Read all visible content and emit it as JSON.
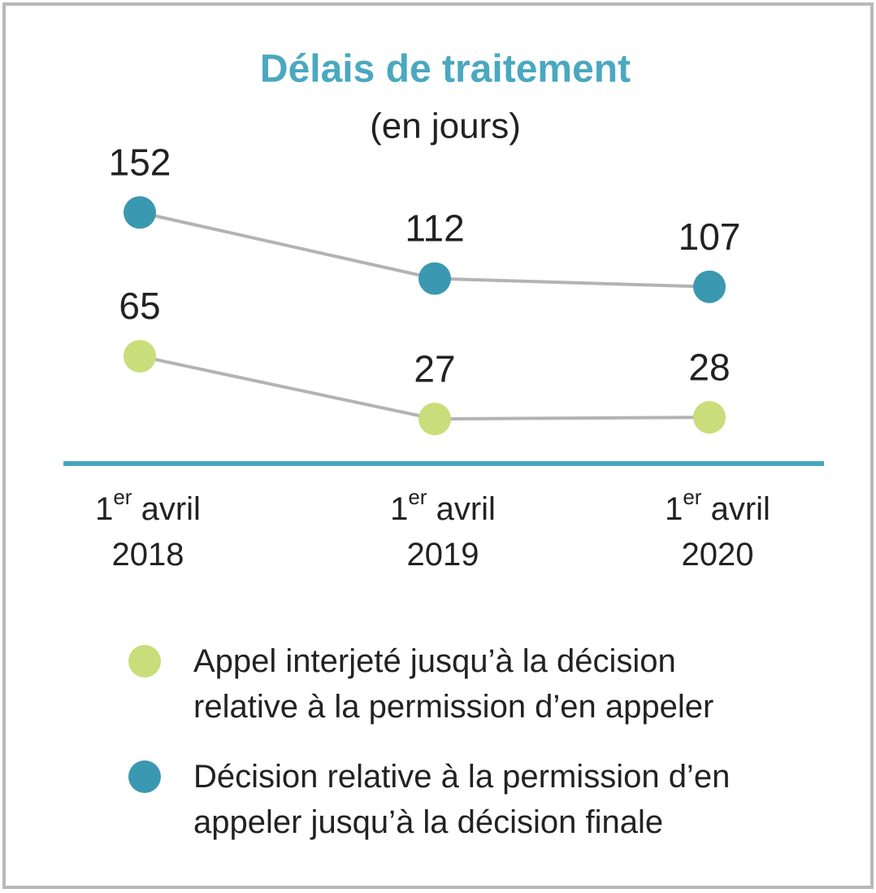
{
  "chart_data": {
    "type": "line",
    "title": "Délais de traitement",
    "subtitle": "(en jours)",
    "categories": [
      "1er avril 2018",
      "1er avril 2019",
      "1er avril 2020"
    ],
    "series": [
      {
        "name": "Appel interjeté jusqu’à la décision relative à la permission d’en appeler",
        "color": "#c9dd7a",
        "values": [
          65,
          27,
          28
        ]
      },
      {
        "name": "Décision relative à la permission d’en appeler jusqu’à la décision finale",
        "color": "#3a98b0",
        "values": [
          152,
          112,
          107
        ]
      }
    ],
    "ylim": [
      0,
      160
    ],
    "line_color": "#b3b3b3",
    "axis_color": "#47a6bd"
  }
}
